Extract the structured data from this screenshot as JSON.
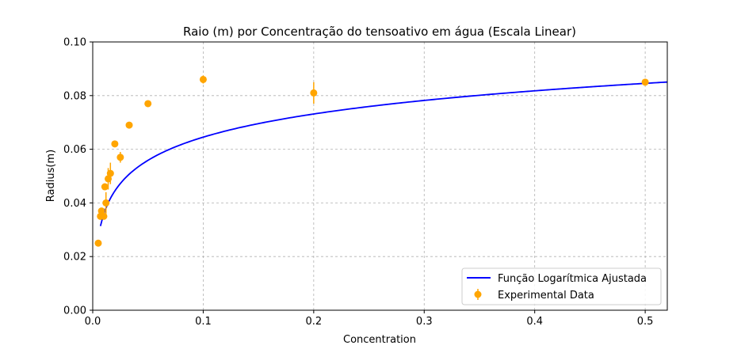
{
  "chart_data": {
    "type": "scatter",
    "title": "Raio (m) por Concentração do tensoativo em água (Escala Linear)",
    "xlabel": "Concentration",
    "ylabel": "Radius(m)",
    "xlim": [
      0,
      0.52
    ],
    "ylim": [
      0,
      0.1
    ],
    "xticks": [
      0.0,
      0.1,
      0.2,
      0.3,
      0.4,
      0.5
    ],
    "xtick_labels": [
      "0.0",
      "0.1",
      "0.2",
      "0.3",
      "0.4",
      "0.5"
    ],
    "yticks": [
      0.0,
      0.02,
      0.04,
      0.06,
      0.08,
      0.1
    ],
    "ytick_labels": [
      "0.00",
      "0.02",
      "0.04",
      "0.06",
      "0.08",
      "0.10"
    ],
    "grid": true,
    "legend_position": "bottom-right",
    "series": [
      {
        "name": "Função Logarítmica Ajustada",
        "kind": "line",
        "color": "#0000ff",
        "model": "a + b*ln(x)",
        "a": 0.0932,
        "b": 0.01246,
        "x_range": [
          0.007,
          0.52
        ]
      },
      {
        "name": "Experimental Data",
        "kind": "errorbar",
        "color": "#ffa500",
        "points": [
          {
            "x": 0.005,
            "y": 0.025,
            "err": 0.0
          },
          {
            "x": 0.007,
            "y": 0.035,
            "err": 0.001
          },
          {
            "x": 0.008,
            "y": 0.037,
            "err": 0.001
          },
          {
            "x": 0.01,
            "y": 0.035,
            "err": 0.001
          },
          {
            "x": 0.011,
            "y": 0.046,
            "err": 0.001
          },
          {
            "x": 0.012,
            "y": 0.04,
            "err": 0.004
          },
          {
            "x": 0.014,
            "y": 0.049,
            "err": 0.004
          },
          {
            "x": 0.016,
            "y": 0.051,
            "err": 0.004
          },
          {
            "x": 0.02,
            "y": 0.062,
            "err": 0.001
          },
          {
            "x": 0.025,
            "y": 0.057,
            "err": 0.002
          },
          {
            "x": 0.033,
            "y": 0.069,
            "err": 0.001
          },
          {
            "x": 0.05,
            "y": 0.077,
            "err": 0.0
          },
          {
            "x": 0.1,
            "y": 0.086,
            "err": 0.0015
          },
          {
            "x": 0.2,
            "y": 0.081,
            "err": 0.004
          },
          {
            "x": 0.5,
            "y": 0.085,
            "err": 0.0
          }
        ]
      }
    ]
  }
}
